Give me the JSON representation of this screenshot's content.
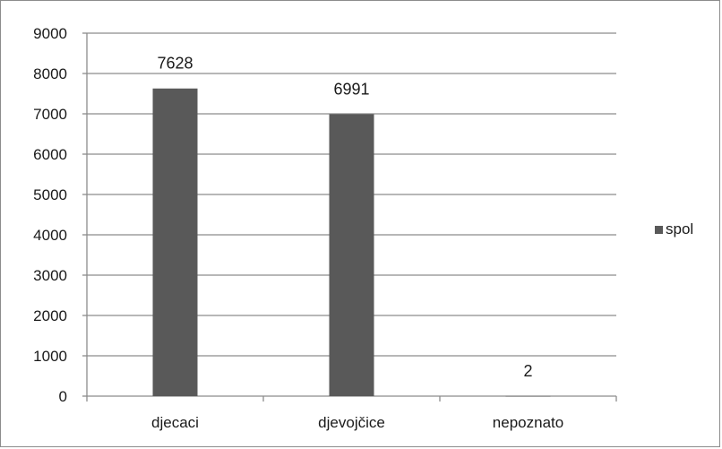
{
  "chart_data": {
    "type": "bar",
    "categories": [
      "djecaci",
      "djevojčice",
      "nepoznato"
    ],
    "series": [
      {
        "name": "spol",
        "values": [
          7628,
          6991,
          2
        ],
        "color": "#595959"
      }
    ],
    "data_labels": [
      "7628",
      "6991",
      "2"
    ],
    "y_ticks": [
      "0",
      "1000",
      "2000",
      "3000",
      "4000",
      "5000",
      "6000",
      "7000",
      "8000",
      "9000"
    ],
    "ylim": [
      0,
      9000
    ],
    "grid": true,
    "legend": {
      "position": "right",
      "entries": [
        "spol"
      ]
    },
    "title": "",
    "xlabel": "",
    "ylabel": ""
  }
}
